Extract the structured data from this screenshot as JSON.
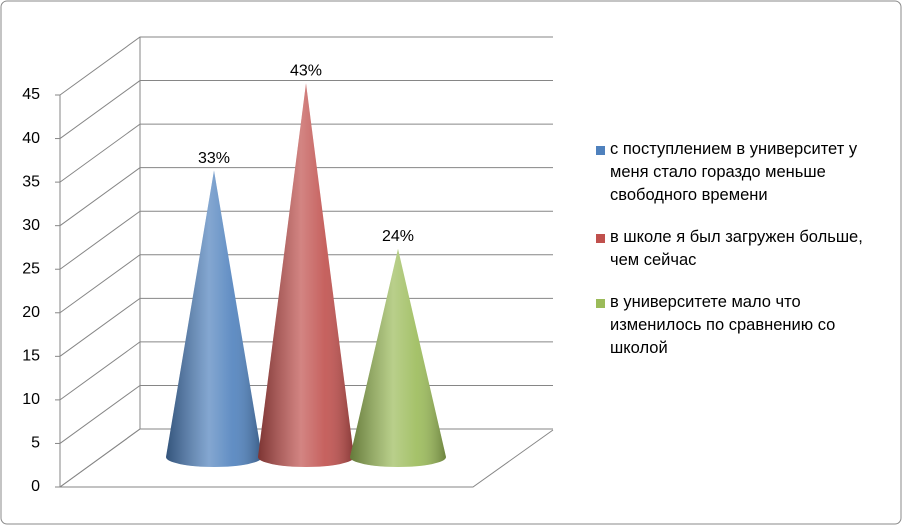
{
  "chart_data": {
    "type": "cone3d",
    "categories": [
      null
    ],
    "series": [
      {
        "name": "с поступлением в университет у меня стало гораздо меньше свободного времени",
        "color": "#4f81bd",
        "values": [
          33
        ],
        "value_labels": [
          "33%"
        ]
      },
      {
        "name": "в школе я был загружен больше, чем сейчас",
        "color": "#c0504d",
        "values": [
          43
        ],
        "value_labels": [
          "43%"
        ]
      },
      {
        "name": "в университете мало что изменилось по сравнению со школой",
        "color": "#9bbb59",
        "values": [
          24
        ],
        "value_labels": [
          "24%"
        ]
      }
    ],
    "ylim": [
      0,
      45
    ],
    "yticks": [
      0,
      5,
      10,
      15,
      20,
      25,
      30,
      35,
      40,
      45
    ],
    "grid": true,
    "legend": "right"
  }
}
